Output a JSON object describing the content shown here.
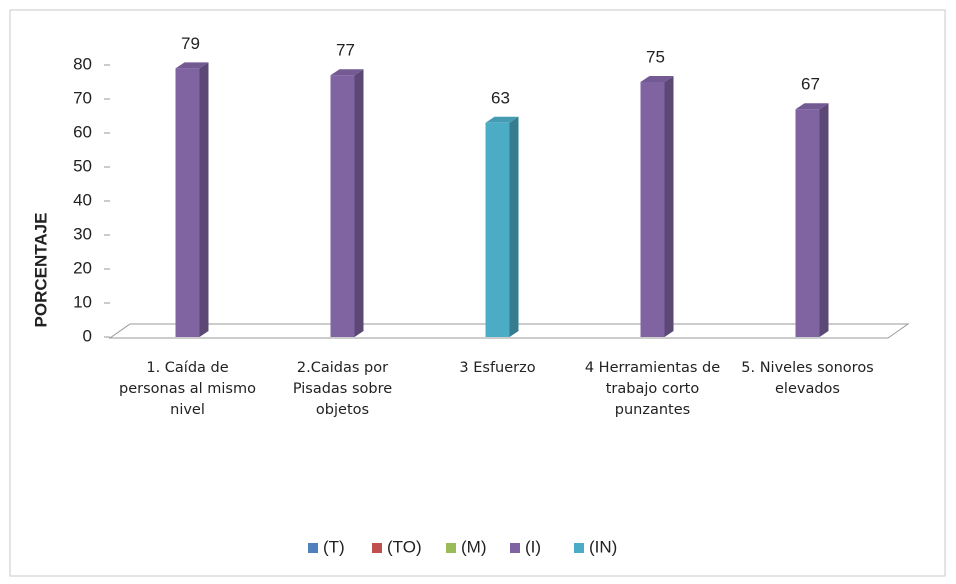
{
  "chart_data": {
    "type": "bar3d",
    "y_label": "PORCENTAJE",
    "categories": [
      "1. Caída de personas al mismo nivel",
      "2.Caidas por Pisadas sobre objetos",
      "3 Esfuerzo",
      "4 Herramientas de trabajo corto punzantes",
      "5. Niveles sonoros elevados"
    ],
    "series": [
      {
        "name": "(T)",
        "color": "#4f81bd",
        "values": [
          null,
          null,
          null,
          null,
          null
        ]
      },
      {
        "name": "(TO)",
        "color": "#c0504d",
        "values": [
          null,
          null,
          null,
          null,
          null
        ]
      },
      {
        "name": "(M)",
        "color": "#9bbb59",
        "values": [
          null,
          null,
          null,
          null,
          null
        ]
      },
      {
        "name": "(I)",
        "color": "#8064a2",
        "values": [
          79,
          77,
          null,
          75,
          67
        ]
      },
      {
        "name": "(IN)",
        "color": "#4bacc6",
        "values": [
          null,
          null,
          63,
          null,
          null
        ]
      }
    ],
    "ylim": [
      0,
      80
    ],
    "yticks": [
      0,
      10,
      20,
      30,
      40,
      50,
      60,
      70,
      80
    ],
    "grid": false,
    "legend": "bottom"
  }
}
